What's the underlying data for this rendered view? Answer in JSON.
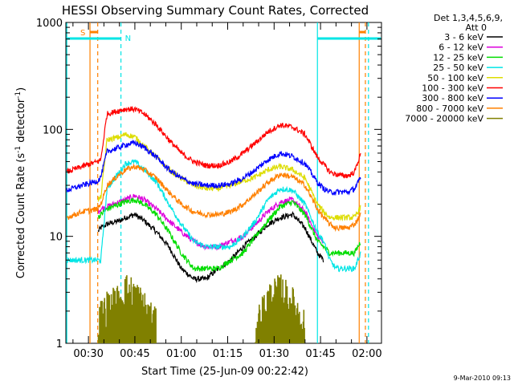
{
  "chart_data": {
    "type": "line",
    "title": "HESSI Observing Summary Count Rates, Corrected",
    "xlabel": "Start Time (25-Jun-09 00:22:42)",
    "ylabel_main": "Corrected Count Rate (s",
    "ylabel_sup1": "-1",
    "ylabel_mid": " detector",
    "ylabel_sup2": "-1",
    "ylabel_end": ")",
    "yscale": "log",
    "ylim": [
      1,
      1000
    ],
    "xlim_minutes": [
      22.7,
      124.7
    ],
    "x_ticks": [
      {
        "minute": 30,
        "label": "00:30"
      },
      {
        "minute": 45,
        "label": "00:45"
      },
      {
        "minute": 60,
        "label": "01:00"
      },
      {
        "minute": 75,
        "label": "01:15"
      },
      {
        "minute": 90,
        "label": "01:30"
      },
      {
        "minute": 105,
        "label": "01:45"
      },
      {
        "minute": 120,
        "label": "02:00"
      }
    ],
    "y_ticks": [
      {
        "value": 1,
        "label": "1"
      },
      {
        "value": 10,
        "label": "10"
      },
      {
        "value": 100,
        "label": "100"
      },
      {
        "value": 1000,
        "label": "1000"
      }
    ],
    "legend_header_1": "Det 1,3,4,5,6,9,",
    "legend_header_2": "Att 0",
    "legend_position": "right",
    "x_minutes": [
      23,
      28,
      33,
      34,
      36,
      40,
      42,
      45,
      48,
      52,
      56,
      60,
      64,
      68,
      72,
      76,
      80,
      84,
      88,
      92,
      96,
      100,
      104,
      106,
      108,
      110,
      112,
      114,
      116,
      118
    ],
    "series": [
      {
        "name": "3 - 6 keV",
        "color": "#000000",
        "start": 33,
        "end": 107,
        "values": [
          null,
          null,
          11,
          12,
          13,
          14,
          15,
          16,
          14,
          11,
          8,
          5,
          4,
          4,
          5,
          6,
          8,
          10,
          13,
          15,
          16,
          12,
          7,
          6,
          null,
          null,
          null,
          null,
          null,
          null
        ]
      },
      {
        "name": "6 - 12 keV",
        "color": "#dd00dd",
        "start": 33,
        "end": 107,
        "values": [
          null,
          null,
          17,
          18,
          19,
          21,
          22,
          24,
          22,
          18,
          14,
          11,
          9,
          8,
          8,
          9,
          10,
          13,
          17,
          21,
          22,
          17,
          10,
          9,
          null,
          null,
          null,
          null,
          null,
          null
        ]
      },
      {
        "name": "12 - 25 keV",
        "color": "#00dd00",
        "start": 33,
        "end": 118,
        "values": [
          null,
          null,
          15,
          16,
          18,
          20,
          21,
          22,
          20,
          16,
          11,
          7,
          5,
          5,
          5,
          6,
          7,
          10,
          14,
          19,
          21,
          16,
          9,
          8,
          7,
          7,
          7,
          7,
          7,
          9
        ]
      },
      {
        "name": "25 - 50 keV",
        "color": "#00e5e5",
        "start": 23,
        "end": 118,
        "values": [
          6,
          6,
          6,
          6,
          28,
          40,
          48,
          50,
          42,
          32,
          20,
          13,
          9,
          8,
          8,
          8,
          10,
          14,
          22,
          28,
          27,
          20,
          11,
          9,
          6,
          5,
          5,
          5,
          5,
          7
        ]
      },
      {
        "name": "50 - 100 keV",
        "color": "#dddd00",
        "start": 33,
        "end": 118,
        "values": [
          null,
          null,
          22,
          23,
          80,
          85,
          90,
          85,
          70,
          55,
          42,
          35,
          30,
          28,
          28,
          30,
          33,
          36,
          42,
          45,
          42,
          35,
          20,
          17,
          15,
          15,
          15,
          15,
          15,
          19
        ]
      },
      {
        "name": "100 - 300 keV",
        "color": "#ff0000",
        "start": 23,
        "end": 118,
        "values": [
          40,
          45,
          50,
          52,
          140,
          150,
          155,
          155,
          140,
          110,
          80,
          60,
          50,
          46,
          46,
          50,
          60,
          75,
          95,
          110,
          105,
          90,
          55,
          47,
          40,
          38,
          37,
          37,
          40,
          60
        ]
      },
      {
        "name": "300 - 800 keV",
        "color": "#0000ff",
        "start": 23,
        "end": 118,
        "values": [
          27,
          30,
          33,
          36,
          62,
          68,
          72,
          75,
          68,
          55,
          42,
          35,
          31,
          30,
          30,
          31,
          35,
          42,
          52,
          60,
          56,
          48,
          32,
          28,
          26,
          26,
          26,
          26,
          28,
          35
        ]
      },
      {
        "name": "800 - 7000 keV",
        "color": "#ff8000",
        "start": 23,
        "end": 118,
        "values": [
          15,
          17,
          18,
          20,
          30,
          38,
          42,
          45,
          42,
          35,
          26,
          20,
          17,
          16,
          16,
          17,
          20,
          25,
          32,
          38,
          36,
          30,
          18,
          15,
          13,
          12,
          12,
          12,
          13,
          16
        ]
      },
      {
        "name": "7000 - 20000 keV",
        "color": "#808000",
        "start": 23,
        "end": 118,
        "values": [
          null,
          null,
          1.6,
          2,
          2.4,
          2.8,
          3.5,
          3.2,
          2.4,
          1.6,
          null,
          null,
          null,
          null,
          null,
          null,
          null,
          1.6,
          2.8,
          3.5,
          2.6,
          1.6,
          null,
          null,
          null,
          null,
          null,
          null,
          null,
          null
        ]
      }
    ],
    "markers": {
      "S_label": "S",
      "N_label": "N",
      "orange_solid_minutes": [
        30.5,
        117.5
      ],
      "orange_dashed_minutes": [
        33,
        119.5
      ],
      "cyan_solid_minutes": [
        23,
        104
      ],
      "cyan_dashed_minutes": [
        40.5,
        120.5
      ],
      "night_bars": [
        [
          23,
          40.5
        ],
        [
          104,
          124.5
        ]
      ],
      "saa_bars": [
        [
          30.5,
          33
        ],
        [
          117.5,
          119.5
        ]
      ]
    },
    "timestamp": "9-Mar-2010 09:13"
  }
}
